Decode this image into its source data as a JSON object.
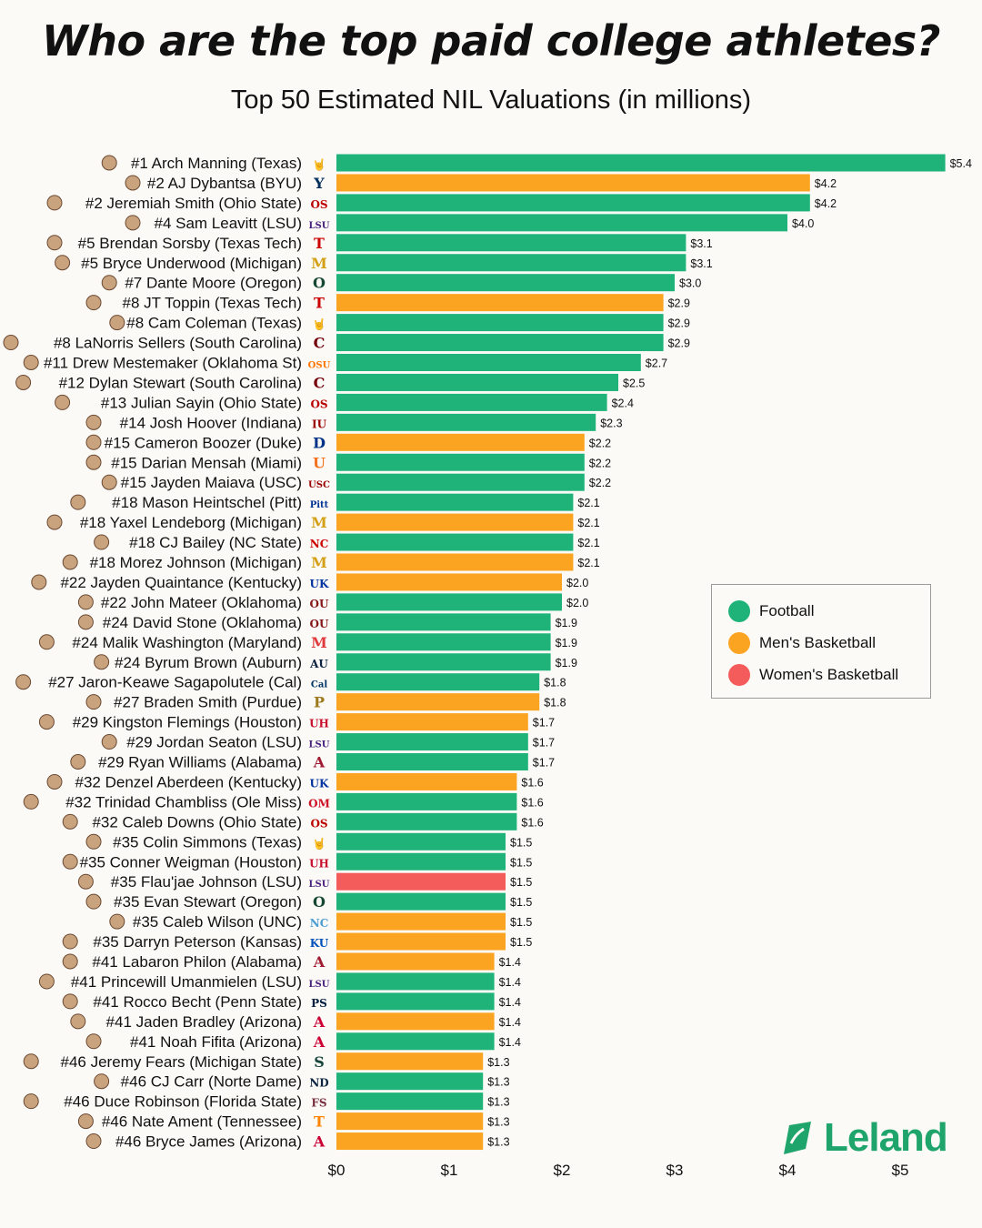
{
  "chart_data": {
    "type": "bar",
    "orientation": "horizontal",
    "title": "Who are the top paid college athletes?",
    "subtitle": "Top 50 Estimated NIL Valuations (in millions)",
    "xlim": [
      0,
      5.4
    ],
    "x_ticks": [
      "$0",
      "$1",
      "$2",
      "$3",
      "$4",
      "$5"
    ],
    "x_tick_values": [
      0,
      1,
      2,
      3,
      4,
      5
    ],
    "categories_sports": {
      "football": {
        "label": "Football",
        "color": "#1fb37a"
      },
      "mens": {
        "label": "Men's Basketball",
        "color": "#fba421"
      },
      "womens": {
        "label": "Women's Basketball",
        "color": "#f45b5b"
      }
    },
    "legend_position": "right-middle",
    "athletes": [
      {
        "label": "#1 Arch Manning (Texas)",
        "value": 5.4,
        "value_label": "$5.4",
        "sport": "football",
        "school": "Texas"
      },
      {
        "label": "#2 AJ Dybantsa (BYU)",
        "value": 4.2,
        "value_label": "$4.2",
        "sport": "mens",
        "school": "BYU"
      },
      {
        "label": "#2 Jeremiah Smith (Ohio State)",
        "value": 4.2,
        "value_label": "$4.2",
        "sport": "football",
        "school": "Ohio State"
      },
      {
        "label": "#4 Sam Leavitt (LSU)",
        "value": 4.0,
        "value_label": "$4.0",
        "sport": "football",
        "school": "LSU"
      },
      {
        "label": "#5 Brendan Sorsby (Texas Tech)",
        "value": 3.1,
        "value_label": "$3.1",
        "sport": "football",
        "school": "Texas Tech"
      },
      {
        "label": "#5 Bryce Underwood (Michigan)",
        "value": 3.1,
        "value_label": "$3.1",
        "sport": "football",
        "school": "Michigan"
      },
      {
        "label": "#7 Dante Moore (Oregon)",
        "value": 3.0,
        "value_label": "$3.0",
        "sport": "football",
        "school": "Oregon"
      },
      {
        "label": "#8 JT Toppin (Texas Tech)",
        "value": 2.9,
        "value_label": "$2.9",
        "sport": "mens",
        "school": "Texas Tech"
      },
      {
        "label": "#8 Cam Coleman (Texas)",
        "value": 2.9,
        "value_label": "$2.9",
        "sport": "football",
        "school": "Texas"
      },
      {
        "label": "#8 LaNorris Sellers (South Carolina)",
        "value": 2.9,
        "value_label": "$2.9",
        "sport": "football",
        "school": "South Carolina"
      },
      {
        "label": "#11 Drew Mestemaker (Oklahoma St)",
        "value": 2.7,
        "value_label": "$2.7",
        "sport": "football",
        "school": "Oklahoma St"
      },
      {
        "label": "#12 Dylan Stewart (South Carolina)",
        "value": 2.5,
        "value_label": "$2.5",
        "sport": "football",
        "school": "South Carolina"
      },
      {
        "label": "#13 Julian Sayin (Ohio State)",
        "value": 2.4,
        "value_label": "$2.4",
        "sport": "football",
        "school": "Ohio State"
      },
      {
        "label": "#14 Josh Hoover (Indiana)",
        "value": 2.3,
        "value_label": "$2.3",
        "sport": "football",
        "school": "Indiana"
      },
      {
        "label": "#15 Cameron Boozer (Duke)",
        "value": 2.2,
        "value_label": "$2.2",
        "sport": "mens",
        "school": "Duke"
      },
      {
        "label": "#15 Darian Mensah (Miami)",
        "value": 2.2,
        "value_label": "$2.2",
        "sport": "football",
        "school": "Miami"
      },
      {
        "label": "#15 Jayden Maiava (USC)",
        "value": 2.2,
        "value_label": "$2.2",
        "sport": "football",
        "school": "USC"
      },
      {
        "label": "#18 Mason Heintschel (Pitt)",
        "value": 2.1,
        "value_label": "$2.1",
        "sport": "football",
        "school": "Pitt"
      },
      {
        "label": "#18 Yaxel Lendeborg (Michigan)",
        "value": 2.1,
        "value_label": "$2.1",
        "sport": "mens",
        "school": "Michigan"
      },
      {
        "label": "#18 CJ Bailey (NC State)",
        "value": 2.1,
        "value_label": "$2.1",
        "sport": "football",
        "school": "NC State"
      },
      {
        "label": "#18 Morez Johnson (Michigan)",
        "value": 2.1,
        "value_label": "$2.1",
        "sport": "mens",
        "school": "Michigan"
      },
      {
        "label": "#22 Jayden Quaintance (Kentucky)",
        "value": 2.0,
        "value_label": "$2.0",
        "sport": "mens",
        "school": "Kentucky"
      },
      {
        "label": "#22 John Mateer (Oklahoma)",
        "value": 2.0,
        "value_label": "$2.0",
        "sport": "football",
        "school": "Oklahoma"
      },
      {
        "label": "#24 David Stone (Oklahoma)",
        "value": 1.9,
        "value_label": "$1.9",
        "sport": "football",
        "school": "Oklahoma"
      },
      {
        "label": "#24 Malik Washington (Maryland)",
        "value": 1.9,
        "value_label": "$1.9",
        "sport": "football",
        "school": "Maryland"
      },
      {
        "label": "#24 Byrum Brown (Auburn)",
        "value": 1.9,
        "value_label": "$1.9",
        "sport": "football",
        "school": "Auburn"
      },
      {
        "label": "#27 Jaron-Keawe Sagapolutele (Cal)",
        "value": 1.8,
        "value_label": "$1.8",
        "sport": "football",
        "school": "Cal"
      },
      {
        "label": "#27 Braden Smith (Purdue)",
        "value": 1.8,
        "value_label": "$1.8",
        "sport": "mens",
        "school": "Purdue"
      },
      {
        "label": "#29 Kingston Flemings (Houston)",
        "value": 1.7,
        "value_label": "$1.7",
        "sport": "mens",
        "school": "Houston"
      },
      {
        "label": "#29 Jordan Seaton (LSU)",
        "value": 1.7,
        "value_label": "$1.7",
        "sport": "football",
        "school": "LSU"
      },
      {
        "label": "#29 Ryan Williams (Alabama)",
        "value": 1.7,
        "value_label": "$1.7",
        "sport": "football",
        "school": "Alabama"
      },
      {
        "label": "#32 Denzel Aberdeen (Kentucky)",
        "value": 1.6,
        "value_label": "$1.6",
        "sport": "mens",
        "school": "Kentucky"
      },
      {
        "label": "#32 Trinidad Chambliss (Ole Miss)",
        "value": 1.6,
        "value_label": "$1.6",
        "sport": "football",
        "school": "Ole Miss"
      },
      {
        "label": "#32 Caleb Downs (Ohio State)",
        "value": 1.6,
        "value_label": "$1.6",
        "sport": "football",
        "school": "Ohio State"
      },
      {
        "label": "#35 Colin Simmons (Texas)",
        "value": 1.5,
        "value_label": "$1.5",
        "sport": "football",
        "school": "Texas"
      },
      {
        "label": "#35 Conner Weigman (Houston)",
        "value": 1.5,
        "value_label": "$1.5",
        "sport": "football",
        "school": "Houston"
      },
      {
        "label": "#35 Flau'jae Johnson (LSU)",
        "value": 1.5,
        "value_label": "$1.5",
        "sport": "womens",
        "school": "LSU"
      },
      {
        "label": "#35 Evan Stewart (Oregon)",
        "value": 1.5,
        "value_label": "$1.5",
        "sport": "football",
        "school": "Oregon"
      },
      {
        "label": "#35 Caleb Wilson (UNC)",
        "value": 1.5,
        "value_label": "$1.5",
        "sport": "mens",
        "school": "UNC"
      },
      {
        "label": "#35 Darryn Peterson (Kansas)",
        "value": 1.5,
        "value_label": "$1.5",
        "sport": "mens",
        "school": "Kansas"
      },
      {
        "label": "#41 Labaron Philon (Alabama)",
        "value": 1.4,
        "value_label": "$1.4",
        "sport": "mens",
        "school": "Alabama"
      },
      {
        "label": "#41 Princewill Umanmielen (LSU)",
        "value": 1.4,
        "value_label": "$1.4",
        "sport": "football",
        "school": "LSU"
      },
      {
        "label": "#41 Rocco Becht (Penn State)",
        "value": 1.4,
        "value_label": "$1.4",
        "sport": "football",
        "school": "Penn State"
      },
      {
        "label": "#41 Jaden Bradley (Arizona)",
        "value": 1.4,
        "value_label": "$1.4",
        "sport": "mens",
        "school": "Arizona"
      },
      {
        "label": "#41 Noah Fifita (Arizona)",
        "value": 1.4,
        "value_label": "$1.4",
        "sport": "football",
        "school": "Arizona"
      },
      {
        "label": "#46 Jeremy Fears (Michigan State)",
        "value": 1.3,
        "value_label": "$1.3",
        "sport": "mens",
        "school": "Michigan State"
      },
      {
        "label": "#46 CJ Carr (Norte Dame)",
        "value": 1.3,
        "value_label": "$1.3",
        "sport": "football",
        "school": "Notre Dame"
      },
      {
        "label": "#46 Duce Robinson (Florida State)",
        "value": 1.3,
        "value_label": "$1.3",
        "sport": "football",
        "school": "Florida State"
      },
      {
        "label": "#46 Nate Ament (Tennessee)",
        "value": 1.3,
        "value_label": "$1.3",
        "sport": "mens",
        "school": "Tennessee"
      },
      {
        "label": "#46 Bryce James (Arizona)",
        "value": 1.3,
        "value_label": "$1.3",
        "sport": "mens",
        "school": "Arizona"
      }
    ]
  },
  "school_logos": {
    "Texas": {
      "text": "🤘",
      "color": "#bf5700"
    },
    "BYU": {
      "text": "Y",
      "color": "#002e5d"
    },
    "Ohio State": {
      "text": "OS",
      "color": "#bb0000"
    },
    "LSU": {
      "text": "LSU",
      "color": "#461d7c"
    },
    "Texas Tech": {
      "text": "T",
      "color": "#cc0000"
    },
    "Michigan": {
      "text": "M",
      "color": "#d4a017"
    },
    "Oregon": {
      "text": "O",
      "color": "#154733"
    },
    "South Carolina": {
      "text": "C",
      "color": "#73000a"
    },
    "Oklahoma St": {
      "text": "OSU",
      "color": "#ff7300"
    },
    "Indiana": {
      "text": "IU",
      "color": "#990000"
    },
    "Duke": {
      "text": "D",
      "color": "#003087"
    },
    "Miami": {
      "text": "U",
      "color": "#f47321"
    },
    "USC": {
      "text": "USC",
      "color": "#990000"
    },
    "Pitt": {
      "text": "Pitt",
      "color": "#003594"
    },
    "NC State": {
      "text": "NC",
      "color": "#cc0000"
    },
    "Kentucky": {
      "text": "UK",
      "color": "#0033a0"
    },
    "Oklahoma": {
      "text": "OU",
      "color": "#841617"
    },
    "Maryland": {
      "text": "M",
      "color": "#e03a3e"
    },
    "Auburn": {
      "text": "AU",
      "color": "#0c2340"
    },
    "Cal": {
      "text": "Cal",
      "color": "#003262"
    },
    "Purdue": {
      "text": "P",
      "color": "#9d7a1c"
    },
    "Houston": {
      "text": "UH",
      "color": "#c8102e"
    },
    "Alabama": {
      "text": "A",
      "color": "#9e1b32"
    },
    "Ole Miss": {
      "text": "OM",
      "color": "#ce1126"
    },
    "UNC": {
      "text": "NC",
      "color": "#4b9cd3"
    },
    "Kansas": {
      "text": "KU",
      "color": "#0051ba"
    },
    "Penn State": {
      "text": "PS",
      "color": "#041e42"
    },
    "Arizona": {
      "text": "A",
      "color": "#cc0033"
    },
    "Michigan State": {
      "text": "S",
      "color": "#18453b"
    },
    "Notre Dame": {
      "text": "ND",
      "color": "#0c2340"
    },
    "Florida State": {
      "text": "FS",
      "color": "#782f40"
    },
    "Tennessee": {
      "text": "T",
      "color": "#ff8200"
    }
  },
  "legend": [
    {
      "label": "Football",
      "color": "#1fb37a"
    },
    {
      "label": "Men's Basketball",
      "color": "#fba421"
    },
    {
      "label": "Women's Basketball",
      "color": "#f45b5b"
    }
  ],
  "brand": {
    "name": "Leland",
    "color": "#1fa56b",
    "icon": "leaf-logo-icon"
  }
}
